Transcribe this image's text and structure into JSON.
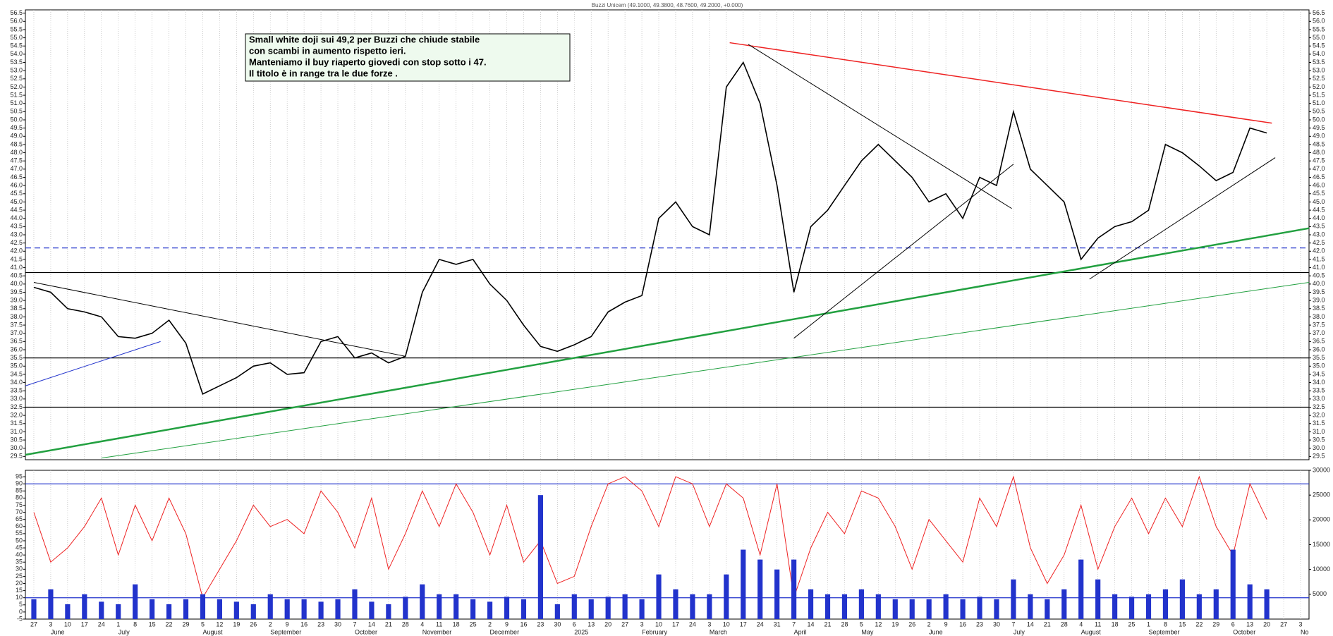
{
  "chart_data": [
    {
      "type": "line",
      "title": "Buzzi Unicem (49.1000, 49.3800, 48.7600, 49.2000, +0.000)",
      "annotations": [
        "Small white doji sui 49,2 per Buzzi che chiude stabile",
        "con scambi in aumento rispetto ieri.",
        "Manteniamo il buy riaperto giovedi con stop sotto i 47.",
        "Il titolo è in range tra le due forze ."
      ],
      "categories": [
        "27",
        "3",
        "10",
        "17",
        "24",
        "1",
        "8",
        "15",
        "22",
        "29",
        "5",
        "12",
        "19",
        "26",
        "2",
        "9",
        "16",
        "23",
        "30",
        "7",
        "14",
        "21",
        "28",
        "4",
        "11",
        "18",
        "25",
        "2",
        "9",
        "16",
        "23",
        "30",
        "6",
        "13",
        "20",
        "27",
        "3",
        "10",
        "17",
        "24",
        "3",
        "10",
        "17",
        "24",
        "31",
        "7",
        "14",
        "21",
        "28",
        "5",
        "12",
        "19",
        "26",
        "2",
        "9",
        "16",
        "23",
        "30",
        "7",
        "14",
        "21",
        "28",
        "4",
        "11",
        "18",
        "25",
        "1",
        "8",
        "15",
        "22",
        "29",
        "6",
        "13",
        "20",
        "27",
        "3"
      ],
      "month_labels": [
        null,
        "June",
        null,
        null,
        null,
        "July",
        null,
        null,
        null,
        null,
        "August",
        null,
        null,
        null,
        "September",
        null,
        null,
        null,
        null,
        "October",
        null,
        null,
        null,
        "November",
        null,
        null,
        null,
        "December",
        null,
        null,
        null,
        null,
        "2025",
        null,
        null,
        null,
        "February",
        null,
        null,
        null,
        "March",
        null,
        null,
        null,
        null,
        "April",
        null,
        null,
        null,
        "May",
        null,
        null,
        null,
        "June",
        null,
        null,
        null,
        null,
        "July",
        null,
        null,
        null,
        "August",
        null,
        null,
        null,
        "September",
        null,
        null,
        null,
        null,
        "October",
        null,
        null,
        null,
        "No"
      ],
      "series": [
        {
          "color": "#000000",
          "values": [
            39.8,
            39.5,
            38.5,
            38.3,
            38.0,
            36.8,
            36.7,
            37.0,
            37.8,
            36.4,
            33.3,
            33.8,
            34.3,
            35.0,
            35.2,
            34.5,
            34.6,
            36.5,
            36.8,
            35.5,
            35.8,
            35.2,
            35.6,
            39.5,
            41.5,
            41.2,
            41.5,
            40.0,
            39.0,
            37.5,
            36.2,
            35.9,
            36.3,
            36.8,
            38.3,
            38.9,
            39.3,
            44.0,
            45.0,
            43.5,
            43.0,
            52.0,
            53.5,
            51.0,
            46.0,
            39.5,
            43.5,
            44.5,
            46.0,
            47.5,
            48.5,
            47.5,
            46.5,
            45.0,
            45.5,
            44.0,
            46.5,
            46.0,
            50.5,
            47.0,
            46.0,
            45.0,
            41.5,
            42.8,
            43.5,
            43.8,
            44.5,
            48.5,
            48.0,
            47.2,
            46.3,
            46.8,
            49.5,
            49.2,
            null,
            null
          ]
        }
      ],
      "ylim": [
        29.3,
        56.7
      ],
      "yticks": [
        29.5,
        {
          "value": 30,
          "label": "30.0"
        },
        30.5,
        {
          "value": 31,
          "label": "31.0"
        },
        31.5,
        {
          "value": 32,
          "label": "32.0"
        },
        32.5,
        {
          "value": 33,
          "label": "33.0"
        },
        33.5,
        {
          "value": 34,
          "label": "34.0"
        },
        34.5,
        {
          "value": 35,
          "label": "35.0"
        },
        35.5,
        {
          "value": 36,
          "label": "36.0"
        },
        36.5,
        {
          "value": 37,
          "label": "37.0"
        },
        37.5,
        {
          "value": 38,
          "label": "38.0"
        },
        38.5,
        {
          "value": 39,
          "label": "39.0"
        },
        39.5,
        {
          "value": 40,
          "label": "40.0"
        },
        40.5,
        {
          "value": 41,
          "label": "41.0"
        },
        41.5,
        {
          "value": 42,
          "label": "42.0"
        },
        42.5,
        {
          "value": 43,
          "label": "43.0"
        },
        43.5,
        {
          "value": 44,
          "label": "44.0"
        },
        44.5,
        {
          "value": 45,
          "label": "45.0"
        },
        45.5,
        {
          "value": 46,
          "label": "46.0"
        },
        46.5,
        {
          "value": 47,
          "label": "47.0"
        },
        47.5,
        {
          "value": 48,
          "label": "48.0"
        },
        48.5,
        {
          "value": 49,
          "label": "49.0"
        },
        49.5,
        {
          "value": 50,
          "label": "50.0"
        },
        50.5,
        {
          "value": 51,
          "label": "51.0"
        },
        51.5,
        {
          "value": 52,
          "label": "52.0"
        },
        52.5,
        {
          "value": 53,
          "label": "53.0"
        },
        53.5,
        {
          "value": 54,
          "label": "54.0"
        },
        54.5,
        {
          "value": 55,
          "label": "55.0"
        },
        55.5,
        {
          "value": 56,
          "label": "56.0"
        },
        56.5
      ],
      "hlines": [
        {
          "value": 42.2,
          "color": "#2233cc",
          "dash": true
        },
        {
          "value": 40.7,
          "color": "#000000"
        },
        {
          "value": 35.5,
          "color": "#000000"
        },
        {
          "value": 32.5,
          "color": "#000000"
        }
      ],
      "trendlines": [
        {
          "from": [
            41.2,
            54.7
          ],
          "to": [
            73.3,
            49.8
          ],
          "color": "#ee2222",
          "width": 1.5
        },
        {
          "from": [
            -0.5,
            29.6
          ],
          "to": [
            75.5,
            43.4
          ],
          "color": "#22a040",
          "width": 2.5
        },
        {
          "from": [
            4,
            29.4
          ],
          "to": [
            75.5,
            40.1
          ],
          "color": "#22a040",
          "width": 1
        },
        {
          "from": [
            0,
            40.1
          ],
          "to": [
            22,
            35.6
          ],
          "color": "#000000",
          "width": 1
        },
        {
          "from": [
            -0.5,
            33.8
          ],
          "to": [
            7.5,
            36.5
          ],
          "color": "#2233cc",
          "width": 1
        },
        {
          "from": [
            42.3,
            54.6
          ],
          "to": [
            57.9,
            44.6
          ],
          "color": "#000000",
          "width": 1
        },
        {
          "from": [
            45,
            36.7
          ],
          "to": [
            58,
            47.3
          ],
          "color": "#000000",
          "width": 1
        },
        {
          "from": [
            62.5,
            40.3
          ],
          "to": [
            73.5,
            47.7
          ],
          "color": "#000000",
          "width": 1
        }
      ]
    },
    {
      "type": "line",
      "series": [
        {
          "color": "#ee2222",
          "values": [
            70,
            35,
            45,
            60,
            80,
            40,
            75,
            50,
            80,
            55,
            10,
            30,
            50,
            75,
            60,
            65,
            55,
            85,
            70,
            45,
            80,
            30,
            55,
            85,
            60,
            90,
            70,
            40,
            75,
            35,
            50,
            20,
            25,
            60,
            90,
            95,
            85,
            60,
            95,
            90,
            60,
            90,
            80,
            40,
            90,
            10,
            45,
            70,
            55,
            85,
            80,
            60,
            30,
            65,
            50,
            35,
            80,
            60,
            95,
            45,
            20,
            40,
            75,
            30,
            60,
            80,
            55,
            80,
            60,
            95,
            60,
            40,
            90,
            65,
            null,
            null
          ]
        },
        {
          "type": "bar",
          "axis": "y2",
          "color": "#2233cc",
          "values": [
            4000,
            6000,
            3000,
            5000,
            3500,
            3000,
            7000,
            4000,
            3000,
            4000,
            5000,
            4000,
            3500,
            3000,
            5000,
            4000,
            4000,
            3500,
            4000,
            6000,
            3500,
            3000,
            4500,
            7000,
            5000,
            5000,
            4000,
            3500,
            4500,
            4000,
            25000,
            3000,
            5000,
            4000,
            4500,
            5000,
            4000,
            9000,
            6000,
            5000,
            5000,
            9000,
            14000,
            12000,
            10000,
            12000,
            6000,
            5000,
            5000,
            6000,
            5000,
            4000,
            4000,
            4000,
            5000,
            4000,
            4500,
            4000,
            8000,
            5000,
            4000,
            6000,
            12000,
            8000,
            5000,
            4500,
            5000,
            6000,
            8000,
            5000,
            6000,
            14000,
            7000,
            6000,
            null,
            null
          ]
        }
      ],
      "ylim": [
        -5,
        99.5
      ],
      "yticks": [
        -5,
        0,
        5,
        10,
        15,
        20,
        25,
        30,
        35,
        40,
        45,
        50,
        55,
        60,
        65,
        70,
        75,
        80,
        85,
        90,
        95
      ],
      "y2lim": [
        0,
        30000
      ],
      "y2ticks": [
        5000,
        10000,
        15000,
        20000,
        25000,
        30000
      ],
      "hlines": [
        {
          "value": 90,
          "color": "#2233cc"
        },
        {
          "value": 10,
          "color": "#2233cc"
        }
      ]
    }
  ]
}
